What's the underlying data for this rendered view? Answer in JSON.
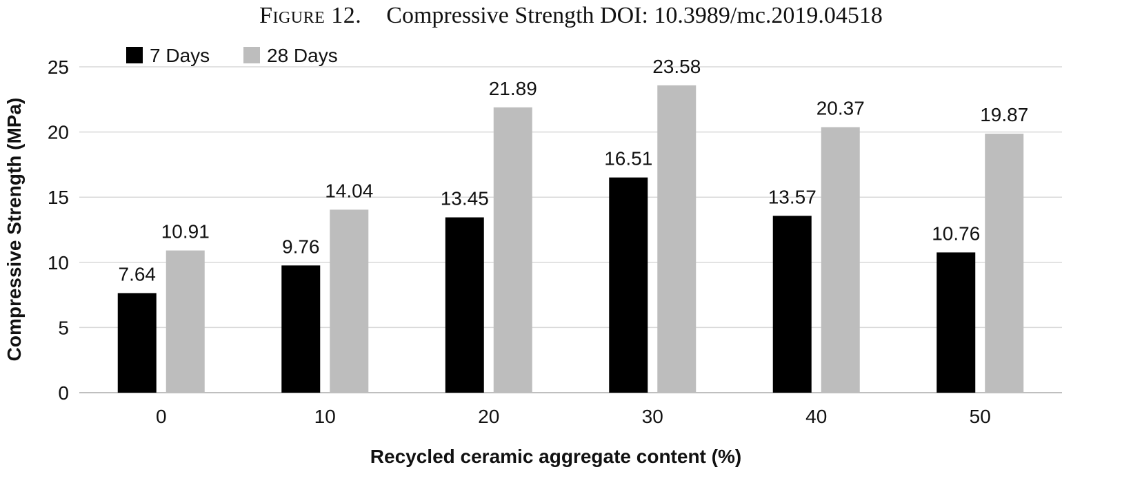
{
  "figure": {
    "label": "Figure 12.",
    "caption": "Compressive Strength DOI: 10.3989/mc.2019.04518"
  },
  "chart_data": {
    "type": "bar",
    "title": "",
    "xlabel": "Recycled ceramic aggregate content (%)",
    "ylabel": "Compressive Strength (MPa)",
    "categories": [
      "0",
      "10",
      "20",
      "30",
      "40",
      "50"
    ],
    "series": [
      {
        "name": "7 Days",
        "color": "#000000",
        "values": [
          7.64,
          9.76,
          13.45,
          16.51,
          13.57,
          10.76
        ],
        "labels": [
          "7.64",
          "9.76",
          "13.45",
          "16.51",
          "13.57",
          "10.76"
        ]
      },
      {
        "name": "28 Days",
        "color": "#bdbdbd",
        "values": [
          10.91,
          14.04,
          21.89,
          23.58,
          20.37,
          19.87
        ],
        "labels": [
          "10.91",
          "14.04",
          "21.89",
          "23.58",
          "20.37",
          "19.87"
        ]
      }
    ],
    "ylim": [
      0,
      25
    ],
    "yticks": [
      0,
      5,
      10,
      15,
      20,
      25
    ],
    "grid": true,
    "legend_position": "top-left"
  }
}
